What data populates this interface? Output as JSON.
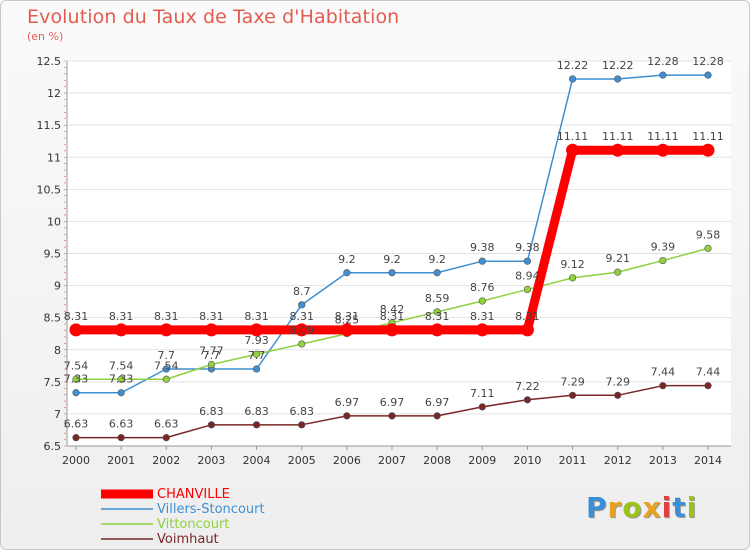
{
  "title": "Evolution du Taux de Taxe d'Habitation",
  "subtitle": "(en %)",
  "logo": {
    "text": "Proxiti",
    "colors": [
      "#3a8fd6",
      "#e8a020",
      "#9bc31c",
      "#e8a020",
      "#e23f3f",
      "#3a8fd6",
      "#9bc31c"
    ]
  },
  "chart_data": {
    "type": "line",
    "title": "Evolution du Taux de Taxe d'Habitation",
    "ylabel": "(en %)",
    "xlabel": "",
    "ylim": [
      6.5,
      12.5
    ],
    "yticks": [
      "6.5",
      "7",
      "7.5",
      "8",
      "8.5",
      "9",
      "9.5",
      "10",
      "10.5",
      "11",
      "11.5",
      "12",
      "12.5"
    ],
    "categories": [
      "2000",
      "2001",
      "2002",
      "2003",
      "2004",
      "2005",
      "2006",
      "2007",
      "2008",
      "2009",
      "2010",
      "2011",
      "2012",
      "2013",
      "2014"
    ],
    "series": [
      {
        "name": "CHANVILLE",
        "color": "#ff0000",
        "values": [
          8.31,
          8.31,
          8.31,
          8.31,
          8.31,
          8.31,
          8.31,
          8.31,
          8.31,
          8.31,
          8.31,
          11.11,
          11.11,
          11.11,
          11.11
        ],
        "labels": [
          "8.31",
          "8.31",
          "8.31",
          "8.31",
          "8.31",
          "8.31",
          "8.31",
          "8.31",
          "8.31",
          "8.31",
          "8.31",
          "11.11",
          "11.11",
          "11.11",
          "11.11"
        ]
      },
      {
        "name": "Villers-Stoncourt",
        "color": "#3f8fd2",
        "values": [
          7.33,
          7.33,
          7.7,
          7.7,
          7.7,
          8.7,
          9.2,
          9.2,
          9.2,
          9.38,
          9.38,
          12.22,
          12.22,
          12.28,
          12.28
        ],
        "labels": [
          "7.33",
          "7.33",
          "7.7",
          "7.7",
          "7.7",
          "8.7",
          "9.2",
          "9.2",
          "9.2",
          "9.38",
          "9.38",
          "12.22",
          "12.22",
          "12.28",
          "12.28"
        ]
      },
      {
        "name": "Vittoncourt",
        "color": "#8fd13f",
        "values": [
          7.54,
          7.54,
          7.54,
          7.77,
          7.93,
          8.09,
          8.25,
          8.42,
          8.59,
          8.76,
          8.94,
          9.12,
          9.21,
          9.39,
          9.58
        ],
        "labels": [
          "7.54",
          "7.54",
          "7.54",
          "7.77",
          "7.93",
          "8.09",
          "8.25",
          "8.42",
          "8.59",
          "8.76",
          "8.94",
          "9.12",
          "9.21",
          "9.39",
          "9.58"
        ]
      },
      {
        "name": "Voimhaut",
        "color": "#7a2626",
        "values": [
          6.63,
          6.63,
          6.63,
          6.83,
          6.83,
          6.83,
          6.97,
          6.97,
          6.97,
          7.11,
          7.22,
          7.29,
          7.29,
          7.44,
          7.44
        ],
        "labels": [
          "6.63",
          "6.63",
          "6.63",
          "6.83",
          "6.83",
          "6.83",
          "6.97",
          "6.97",
          "6.97",
          "7.11",
          "7.22",
          "7.29",
          "7.29",
          "7.44",
          "7.44"
        ]
      }
    ],
    "legend_position": "bottom-left"
  }
}
